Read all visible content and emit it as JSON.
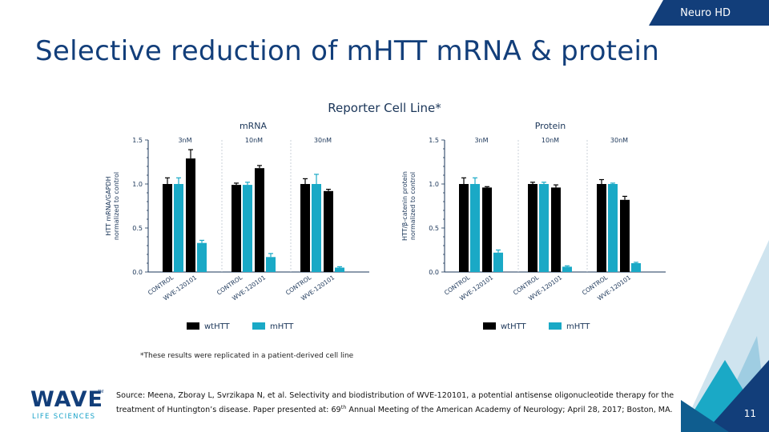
{
  "header": {
    "tag": "Neuro HD",
    "title": "Selective reduction of mHTT mRNA & protein"
  },
  "subtitle": "Reporter Cell Line*",
  "chart_data": [
    {
      "type": "bar",
      "title": "mRNA",
      "ylabel": [
        "HTT mRNA/GAPDH",
        "normalized to control"
      ],
      "ylim": [
        0,
        1.5
      ],
      "yticks": [
        "0.0",
        "0.5",
        "1.0",
        "1.5"
      ],
      "groups": [
        "3nM",
        "10nM",
        "30nM"
      ],
      "categories": [
        "CONTROL",
        "WVE-120101"
      ],
      "series": [
        {
          "name": "wtHTT",
          "color": "#000000",
          "values": [
            [
              1.0,
              1.29
            ],
            [
              0.99,
              1.18
            ],
            [
              1.0,
              0.92
            ]
          ],
          "errors": [
            [
              0.07,
              0.1
            ],
            [
              0.02,
              0.03
            ],
            [
              0.06,
              0.02
            ]
          ]
        },
        {
          "name": "mHTT",
          "color": "#1aa9c6",
          "values": [
            [
              1.0,
              0.33
            ],
            [
              0.99,
              0.17
            ],
            [
              1.0,
              0.05
            ]
          ],
          "errors": [
            [
              0.07,
              0.03
            ],
            [
              0.03,
              0.04
            ],
            [
              0.11,
              0.01
            ]
          ]
        }
      ],
      "legend": "bottom"
    },
    {
      "type": "bar",
      "title": "Protein",
      "ylabel": [
        "HTT/β-catenin protein",
        "normalized to control"
      ],
      "ylim": [
        0,
        1.5
      ],
      "yticks": [
        "0.0",
        "0.5",
        "1.0",
        "1.5"
      ],
      "groups": [
        "3nM",
        "10nM",
        "30nM"
      ],
      "categories": [
        "CONTROL",
        "WVE-120101"
      ],
      "series": [
        {
          "name": "wtHTT",
          "color": "#000000",
          "values": [
            [
              1.0,
              0.96
            ],
            [
              1.0,
              0.96
            ],
            [
              1.0,
              0.82
            ]
          ],
          "errors": [
            [
              0.07,
              0.01
            ],
            [
              0.02,
              0.03
            ],
            [
              0.05,
              0.04
            ]
          ]
        },
        {
          "name": "mHTT",
          "color": "#1aa9c6",
          "values": [
            [
              1.0,
              0.22
            ],
            [
              1.0,
              0.06
            ],
            [
              1.0,
              0.1
            ]
          ],
          "errors": [
            [
              0.07,
              0.03
            ],
            [
              0.02,
              0.01
            ],
            [
              0.01,
              0.01
            ]
          ]
        }
      ],
      "legend": "bottom"
    }
  ],
  "footnote": "*These results were replicated in a patient-derived cell line",
  "source": {
    "line1": "Source: Meena, Zboray L, Svrzikapa N, et al. Selectivity and biodistribution of WVE-120101, a potential antisense oligonucleotide therapy for the",
    "line2a": "treatment of Huntington’s disease.  Paper presented at: 69",
    "sup": "th",
    "line2b": " Annual Meeting of the American Academy of Neurology; April 28, 2017; Boston, MA."
  },
  "logo": {
    "word": "WAVE",
    "tm": "TM",
    "sub": "LIFE SCIENCES"
  },
  "page_number": "11",
  "colors": {
    "navy": "#123e7a",
    "teal": "#1aa9c6",
    "black": "#000000"
  }
}
